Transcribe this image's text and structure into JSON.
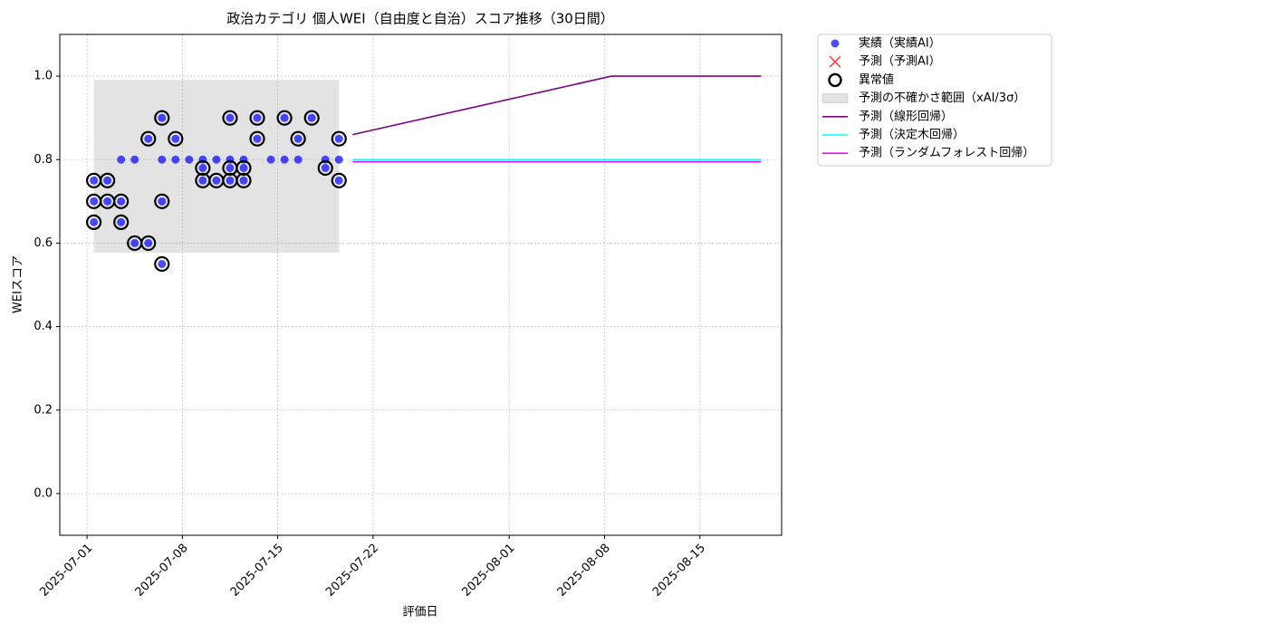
{
  "chart_data": {
    "type": "scatter",
    "title": "政治カテゴリ 個人WEI（自由度と自治）スコア推移（30日間）",
    "x_label": "評価日",
    "y_label": "WEIスコア",
    "xlim": [
      "2025-06-29",
      "2025-08-21"
    ],
    "ylim": [
      -0.1,
      1.1
    ],
    "xticks": [
      "2025-07-01",
      "2025-07-08",
      "2025-07-15",
      "2025-07-22",
      "2025-08-01",
      "2025-08-08",
      "2025-08-15"
    ],
    "yticks": [
      {
        "value": 0,
        "label": "0.0"
      },
      {
        "value": 0.2,
        "label": "0.2"
      },
      {
        "value": 0.4,
        "label": "0.4"
      },
      {
        "value": 0.6,
        "label": "0.6"
      },
      {
        "value": 0.8,
        "label": "0.8"
      },
      {
        "value": 1,
        "label": "1.0"
      }
    ],
    "grid": true,
    "series": [
      {
        "name": "実績（実績AI）",
        "type": "scatter",
        "color": "#0000ff",
        "x": [
          "2025-07-01",
          "2025-07-01",
          "2025-07-01",
          "2025-07-02",
          "2025-07-02",
          "2025-07-03",
          "2025-07-03",
          "2025-07-03",
          "2025-07-04",
          "2025-07-04",
          "2025-07-05",
          "2025-07-05",
          "2025-07-06",
          "2025-07-06",
          "2025-07-06",
          "2025-07-06",
          "2025-07-07",
          "2025-07-07",
          "2025-07-08",
          "2025-07-09",
          "2025-07-09",
          "2025-07-09",
          "2025-07-10",
          "2025-07-10",
          "2025-07-11",
          "2025-07-11",
          "2025-07-11",
          "2025-07-11",
          "2025-07-12",
          "2025-07-12",
          "2025-07-12",
          "2025-07-13",
          "2025-07-13",
          "2025-07-14",
          "2025-07-15",
          "2025-07-15",
          "2025-07-16",
          "2025-07-16",
          "2025-07-17",
          "2025-07-18",
          "2025-07-18",
          "2025-07-19",
          "2025-07-19",
          "2025-07-19"
        ],
        "values": [
          0.7,
          0.65,
          0.75,
          0.75,
          0.7,
          0.7,
          0.65,
          0.8,
          0.8,
          0.6,
          0.85,
          0.6,
          0.7,
          0.55,
          0.8,
          0.9,
          0.8,
          0.85,
          0.8,
          0.75,
          0.8,
          0.78,
          0.75,
          0.8,
          0.9,
          0.78,
          0.75,
          0.8,
          0.78,
          0.75,
          0.8,
          0.9,
          0.85,
          0.8,
          0.9,
          0.8,
          0.85,
          0.8,
          0.9,
          0.8,
          0.78,
          0.85,
          0.8,
          0.75
        ]
      },
      {
        "name": "予測（予測AI）",
        "type": "cross",
        "color": "#ff0000",
        "x": [],
        "values": []
      },
      {
        "name": "異常値",
        "type": "ring",
        "color": "#000000",
        "x": [
          "2025-07-01",
          "2025-07-01",
          "2025-07-01",
          "2025-07-02",
          "2025-07-02",
          "2025-07-03",
          "2025-07-03",
          "2025-07-04",
          "2025-07-05",
          "2025-07-05",
          "2025-07-06",
          "2025-07-06",
          "2025-07-06",
          "2025-07-07",
          "2025-07-09",
          "2025-07-09",
          "2025-07-10",
          "2025-07-11",
          "2025-07-11",
          "2025-07-11",
          "2025-07-12",
          "2025-07-12",
          "2025-07-13",
          "2025-07-13",
          "2025-07-15",
          "2025-07-16",
          "2025-07-17",
          "2025-07-18",
          "2025-07-19",
          "2025-07-19"
        ],
        "values": [
          0.7,
          0.65,
          0.75,
          0.75,
          0.7,
          0.7,
          0.65,
          0.6,
          0.85,
          0.6,
          0.7,
          0.55,
          0.9,
          0.85,
          0.75,
          0.78,
          0.75,
          0.9,
          0.78,
          0.75,
          0.78,
          0.75,
          0.9,
          0.85,
          0.9,
          0.85,
          0.9,
          0.78,
          0.85,
          0.75
        ]
      },
      {
        "name": "予測の不確かさ範囲（xAI/3σ）",
        "type": "band",
        "color": "#808080",
        "x": [
          "2025-07-01",
          "2025-07-19"
        ],
        "lower": [
          0.577,
          0.577
        ],
        "upper": [
          0.991,
          0.991
        ]
      },
      {
        "name": "予測（線形回帰）",
        "type": "line",
        "color": "#800080",
        "x": [
          "2025-07-20",
          "2025-08-08",
          "2025-08-19"
        ],
        "values": [
          0.86,
          1.0,
          1.0
        ]
      },
      {
        "name": "予測（決定木回帰）",
        "type": "line",
        "color": "#00ffff",
        "x": [
          "2025-07-20",
          "2025-08-19"
        ],
        "values": [
          0.8,
          0.8
        ]
      },
      {
        "name": "予測（ランダムフォレスト回帰）",
        "type": "line",
        "color": "#ff00ff",
        "x": [
          "2025-07-20",
          "2025-08-19"
        ],
        "values": [
          0.795,
          0.795
        ]
      }
    ]
  }
}
